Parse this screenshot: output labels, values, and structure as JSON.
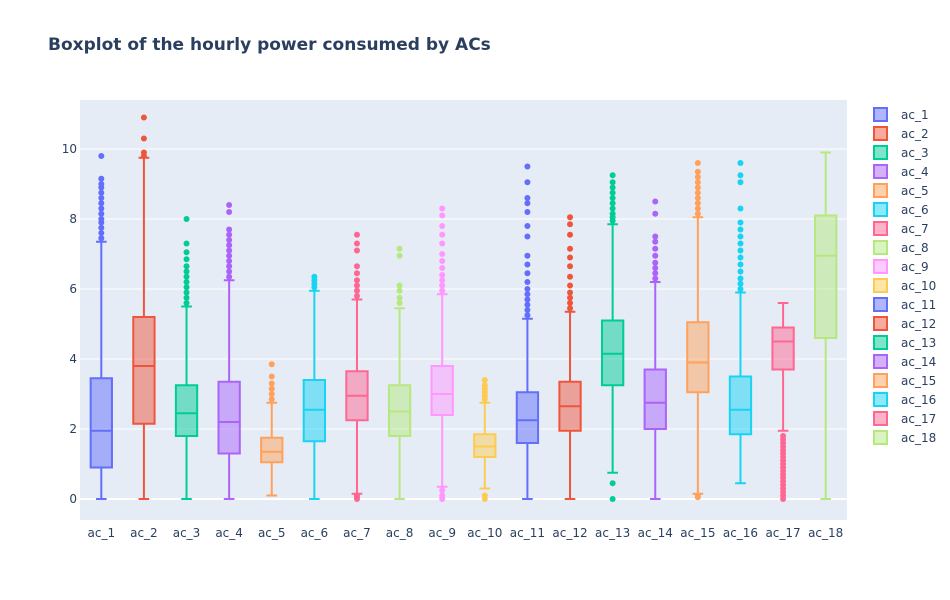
{
  "chart_data": {
    "type": "box",
    "title": "Boxplot of the hourly power consumed by ACs",
    "xlabel": "",
    "ylabel": "",
    "ylim": [
      -0.6,
      11.4
    ],
    "yticks": [
      0,
      2,
      4,
      6,
      8,
      10
    ],
    "grid": true,
    "legend_position": "right",
    "background_color": "#e5ecf6",
    "series": [
      {
        "name": "ac_1",
        "color": "#636efa",
        "q1": 0.9,
        "median": 1.95,
        "q3": 3.45,
        "whisker_low": 0.0,
        "whisker_high": 7.35,
        "outliers": [
          7.45,
          7.6,
          7.75,
          7.9,
          8.0,
          8.15,
          8.3,
          8.45,
          8.6,
          8.75,
          8.9,
          9.0,
          9.15,
          9.8
        ]
      },
      {
        "name": "ac_2",
        "color": "#ef553b",
        "q1": 2.15,
        "median": 3.8,
        "q3": 5.2,
        "whisker_low": 0.0,
        "whisker_high": 9.75,
        "outliers": [
          9.8,
          9.9,
          10.3,
          10.9
        ]
      },
      {
        "name": "ac_3",
        "color": "#00cc96",
        "q1": 1.8,
        "median": 2.45,
        "q3": 3.25,
        "whisker_low": 0.0,
        "whisker_high": 5.5,
        "outliers": [
          5.6,
          5.75,
          5.9,
          6.05,
          6.2,
          6.35,
          6.5,
          6.65,
          6.85,
          7.05,
          7.3,
          8.0
        ]
      },
      {
        "name": "ac_4",
        "color": "#ab63fa",
        "q1": 1.3,
        "median": 2.2,
        "q3": 3.35,
        "whisker_low": 0.0,
        "whisker_high": 6.25,
        "outliers": [
          6.35,
          6.5,
          6.65,
          6.8,
          6.95,
          7.1,
          7.25,
          7.4,
          7.55,
          7.7,
          8.2,
          8.4
        ]
      },
      {
        "name": "ac_5",
        "color": "#ffa15a",
        "q1": 1.05,
        "median": 1.35,
        "q3": 1.75,
        "whisker_low": 0.1,
        "whisker_high": 2.75,
        "outliers": [
          2.85,
          3.0,
          3.15,
          3.3,
          3.5,
          3.85
        ]
      },
      {
        "name": "ac_6",
        "color": "#19d3f3",
        "q1": 1.65,
        "median": 2.55,
        "q3": 3.4,
        "whisker_low": 0.0,
        "whisker_high": 5.95,
        "outliers": [
          6.05,
          6.15,
          6.25,
          6.35
        ]
      },
      {
        "name": "ac_7",
        "color": "#ff6692",
        "q1": 2.25,
        "median": 2.95,
        "q3": 3.65,
        "whisker_low": 0.15,
        "whisker_high": 5.7,
        "outliers": [
          0.0,
          0.05,
          0.1,
          5.8,
          5.95,
          6.1,
          6.25,
          6.45,
          6.65,
          7.1,
          7.3,
          7.55
        ]
      },
      {
        "name": "ac_8",
        "color": "#b6e880",
        "q1": 1.8,
        "median": 2.5,
        "q3": 3.25,
        "whisker_low": 0.0,
        "whisker_high": 5.45,
        "outliers": [
          5.6,
          5.75,
          5.95,
          6.1,
          6.95,
          7.15
        ]
      },
      {
        "name": "ac_9",
        "color": "#ff97ff",
        "q1": 2.4,
        "median": 3.0,
        "q3": 3.8,
        "whisker_low": 0.35,
        "whisker_high": 5.85,
        "outliers": [
          0.0,
          0.1,
          0.25,
          5.95,
          6.1,
          6.25,
          6.4,
          6.6,
          6.8,
          7.0,
          7.3,
          7.55,
          7.8,
          8.1,
          8.3
        ]
      },
      {
        "name": "ac_10",
        "color": "#fecb52",
        "q1": 1.2,
        "median": 1.5,
        "q3": 1.85,
        "whisker_low": 0.3,
        "whisker_high": 2.75,
        "outliers": [
          0.0,
          0.1,
          2.85,
          2.95,
          3.05,
          3.15,
          3.25,
          3.4
        ]
      },
      {
        "name": "ac_11",
        "color": "#636efa",
        "q1": 1.6,
        "median": 2.25,
        "q3": 3.05,
        "whisker_low": 0.0,
        "whisker_high": 5.15,
        "outliers": [
          5.25,
          5.4,
          5.55,
          5.7,
          5.85,
          6.0,
          6.2,
          6.45,
          6.7,
          6.95,
          7.5,
          7.8,
          8.2,
          8.45,
          8.6,
          9.05,
          9.5
        ]
      },
      {
        "name": "ac_12",
        "color": "#ef553b",
        "q1": 1.95,
        "median": 2.65,
        "q3": 3.35,
        "whisker_low": 0.0,
        "whisker_high": 5.35,
        "outliers": [
          5.45,
          5.6,
          5.75,
          5.9,
          6.1,
          6.35,
          6.65,
          6.9,
          7.15,
          7.55,
          7.85,
          8.05
        ]
      },
      {
        "name": "ac_13",
        "color": "#00cc96",
        "q1": 3.25,
        "median": 4.15,
        "q3": 5.1,
        "whisker_low": 0.75,
        "whisker_high": 7.85,
        "outliers": [
          0.0,
          0.45,
          7.95,
          8.05,
          8.15,
          8.3,
          8.45,
          8.6,
          8.75,
          8.9,
          9.05,
          9.25
        ]
      },
      {
        "name": "ac_14",
        "color": "#ab63fa",
        "q1": 2.0,
        "median": 2.75,
        "q3": 3.7,
        "whisker_low": 0.0,
        "whisker_high": 6.2,
        "outliers": [
          6.3,
          6.45,
          6.6,
          6.75,
          6.95,
          7.15,
          7.35,
          7.5,
          8.15,
          8.5
        ]
      },
      {
        "name": "ac_15",
        "color": "#ffa15a",
        "q1": 3.05,
        "median": 3.9,
        "q3": 5.05,
        "whisker_low": 0.15,
        "whisker_high": 8.05,
        "outliers": [
          0.05,
          0.1,
          8.15,
          8.3,
          8.45,
          8.6,
          8.75,
          8.9,
          9.05,
          9.2,
          9.35,
          9.6
        ]
      },
      {
        "name": "ac_16",
        "color": "#19d3f3",
        "q1": 1.85,
        "median": 2.55,
        "q3": 3.5,
        "whisker_low": 0.45,
        "whisker_high": 5.9,
        "outliers": [
          6.0,
          6.15,
          6.3,
          6.5,
          6.7,
          6.9,
          7.1,
          7.3,
          7.5,
          7.7,
          7.9,
          8.3,
          9.05,
          9.25,
          9.6
        ]
      },
      {
        "name": "ac_17",
        "color": "#ff6692",
        "q1": 3.7,
        "median": 4.5,
        "q3": 4.9,
        "whisker_low": 1.95,
        "whisker_high": 5.6,
        "outliers": [
          0.0,
          0.1,
          0.2,
          0.3,
          0.4,
          0.5,
          0.6,
          0.7,
          0.8,
          0.9,
          1.0,
          1.1,
          1.2,
          1.3,
          1.4,
          1.5,
          1.6,
          1.7,
          1.8
        ]
      },
      {
        "name": "ac_18",
        "color": "#b6e880",
        "q1": 4.6,
        "median": 6.95,
        "q3": 8.1,
        "whisker_low": 0.0,
        "whisker_high": 9.9,
        "outliers": []
      }
    ]
  }
}
